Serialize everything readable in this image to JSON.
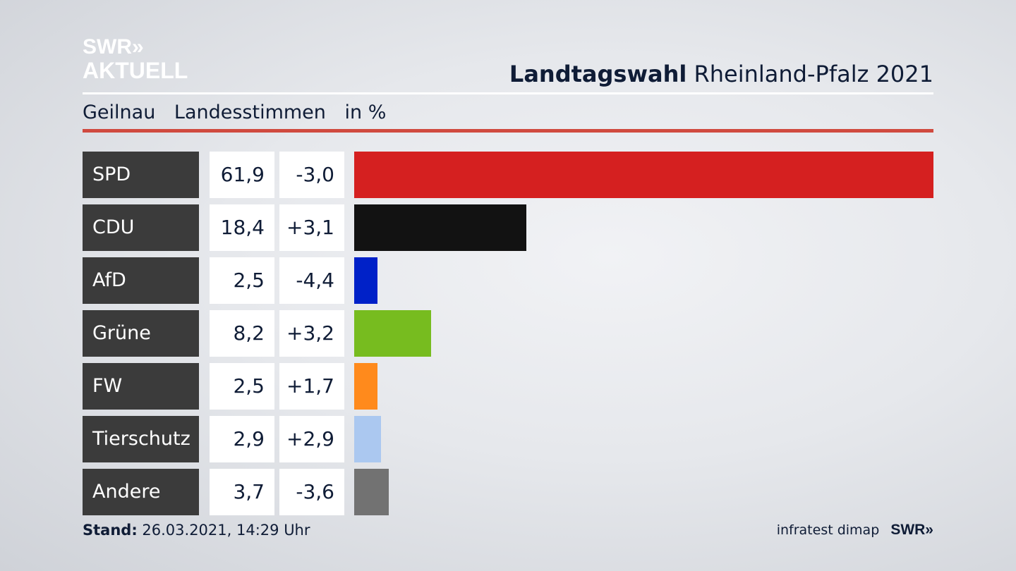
{
  "logo": {
    "line1": "SWR»",
    "line2": "AKTUELL"
  },
  "header": {
    "title_bold": "Landtagswahl",
    "title_rest": "Rheinland-Pfalz 2021",
    "subtitle_place": "Geilnau",
    "subtitle_type": "Landesstimmen",
    "subtitle_unit": "in %"
  },
  "footer": {
    "stand_label": "Stand:",
    "stand_value": "26.03.2021, 14:29 Uhr",
    "credit": "infratest dimap",
    "credit_logo": "SWR»"
  },
  "chart_data": {
    "type": "bar",
    "orientation": "horizontal",
    "categories": [
      "SPD",
      "CDU",
      "AfD",
      "Grüne",
      "FW",
      "Tierschutz",
      "Andere"
    ],
    "values": [
      61.9,
      18.4,
      2.5,
      8.2,
      2.5,
      2.9,
      3.7
    ],
    "values_label": [
      "61,9",
      "18,4",
      "2,5",
      "8,2",
      "2,5",
      "2,9",
      "3,7"
    ],
    "changes": [
      -3.0,
      3.1,
      -4.4,
      3.2,
      1.7,
      2.9,
      -3.6
    ],
    "changes_label": [
      "-3,0",
      "+3,1",
      "-4,4",
      "+3,2",
      "+1,7",
      "+2,9",
      "-3,6"
    ],
    "colors": [
      "#d52020",
      "#121212",
      "#0021c8",
      "#77bc1f",
      "#ff8a1c",
      "#abc8f0",
      "#727272"
    ],
    "xlim": [
      0,
      61.9
    ]
  }
}
